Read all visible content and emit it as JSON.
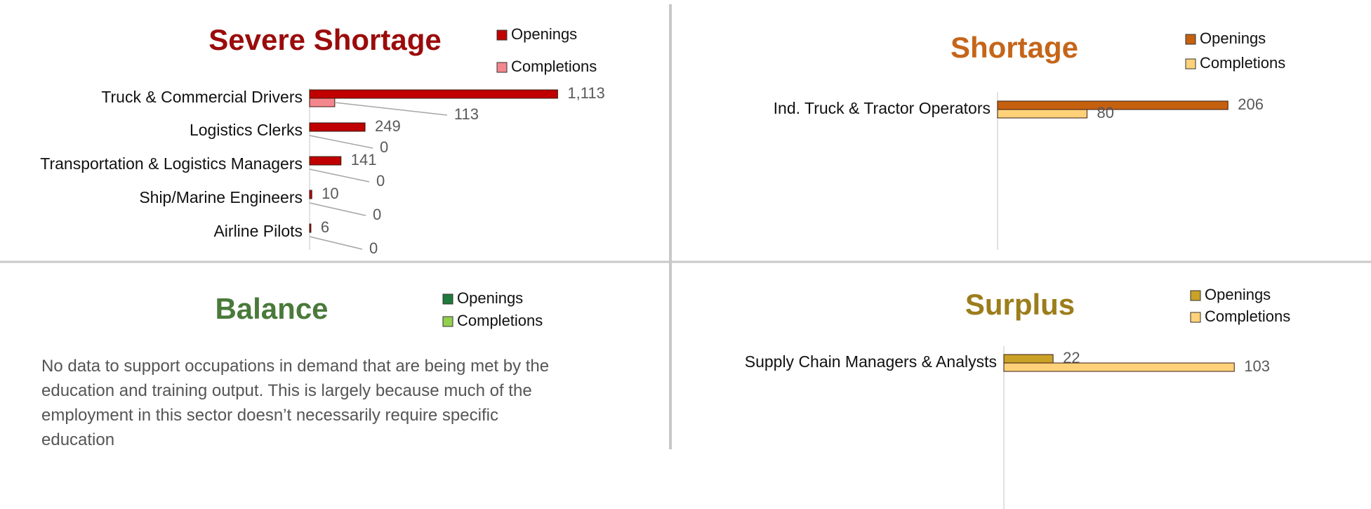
{
  "chart_data": [
    {
      "type": "bar",
      "orientation": "horizontal",
      "title": "Severe Shortage",
      "categories": [
        "Truck & Commercial Drivers",
        "Logistics Clerks",
        "Transportation & Logistics Managers",
        "Ship/Marine Engineers",
        "Airline Pilots"
      ],
      "series": [
        {
          "name": "Openings",
          "color": "#c00000",
          "values": [
            1113,
            249,
            141,
            10,
            6
          ],
          "value_labels": [
            "1,113",
            "249",
            "141",
            "10",
            "6"
          ]
        },
        {
          "name": "Completions",
          "color": "#f4878d",
          "values": [
            113,
            0,
            0,
            0,
            0
          ]
        }
      ],
      "xlim": [
        0,
        1600
      ]
    },
    {
      "type": "bar",
      "orientation": "horizontal",
      "title": "Shortage",
      "categories": [
        "Ind. Truck & Tractor Operators"
      ],
      "series": [
        {
          "name": "Openings",
          "color": "#c5600f",
          "values": [
            206
          ]
        },
        {
          "name": "Completions",
          "color": "#ffd27a",
          "values": [
            80
          ]
        }
      ],
      "xlim": [
        0,
        300
      ]
    },
    {
      "type": "bar",
      "orientation": "horizontal",
      "title": "Balance",
      "categories": [],
      "series": [
        {
          "name": "Openings",
          "color": "#1e7b3c",
          "values": []
        },
        {
          "name": "Completions",
          "color": "#92d050",
          "values": []
        }
      ],
      "note": "No data to support occupations in demand that are being met by the education and training output. This is largely because much of the employment in this sector doesn’t necessarily require specific education"
    },
    {
      "type": "bar",
      "orientation": "horizontal",
      "title": "Surplus",
      "categories": [
        "Supply Chain Managers & Analysts"
      ],
      "series": [
        {
          "name": "Openings",
          "color": "#c9a227",
          "values": [
            22
          ]
        },
        {
          "name": "Completions",
          "color": "#ffd27a",
          "values": [
            103
          ]
        }
      ],
      "xlim": [
        0,
        150
      ]
    }
  ]
}
